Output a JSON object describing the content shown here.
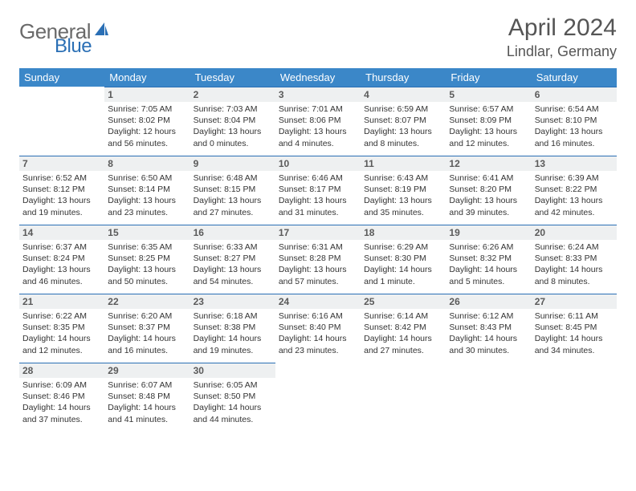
{
  "brand": {
    "part1": "General",
    "part2": "Blue"
  },
  "title": "April 2024",
  "location": "Lindlar, Germany",
  "colors": {
    "header_bg": "#3b87c8",
    "accent": "#2a6fb5",
    "day_bg": "#eef0f1",
    "text": "#3a3a3a"
  },
  "daysOfWeek": [
    "Sunday",
    "Monday",
    "Tuesday",
    "Wednesday",
    "Thursday",
    "Friday",
    "Saturday"
  ],
  "grid": [
    [
      null,
      {
        "n": "1",
        "sr": "Sunrise: 7:05 AM",
        "ss": "Sunset: 8:02 PM",
        "dl1": "Daylight: 12 hours",
        "dl2": "and 56 minutes."
      },
      {
        "n": "2",
        "sr": "Sunrise: 7:03 AM",
        "ss": "Sunset: 8:04 PM",
        "dl1": "Daylight: 13 hours",
        "dl2": "and 0 minutes."
      },
      {
        "n": "3",
        "sr": "Sunrise: 7:01 AM",
        "ss": "Sunset: 8:06 PM",
        "dl1": "Daylight: 13 hours",
        "dl2": "and 4 minutes."
      },
      {
        "n": "4",
        "sr": "Sunrise: 6:59 AM",
        "ss": "Sunset: 8:07 PM",
        "dl1": "Daylight: 13 hours",
        "dl2": "and 8 minutes."
      },
      {
        "n": "5",
        "sr": "Sunrise: 6:57 AM",
        "ss": "Sunset: 8:09 PM",
        "dl1": "Daylight: 13 hours",
        "dl2": "and 12 minutes."
      },
      {
        "n": "6",
        "sr": "Sunrise: 6:54 AM",
        "ss": "Sunset: 8:10 PM",
        "dl1": "Daylight: 13 hours",
        "dl2": "and 16 minutes."
      }
    ],
    [
      {
        "n": "7",
        "sr": "Sunrise: 6:52 AM",
        "ss": "Sunset: 8:12 PM",
        "dl1": "Daylight: 13 hours",
        "dl2": "and 19 minutes."
      },
      {
        "n": "8",
        "sr": "Sunrise: 6:50 AM",
        "ss": "Sunset: 8:14 PM",
        "dl1": "Daylight: 13 hours",
        "dl2": "and 23 minutes."
      },
      {
        "n": "9",
        "sr": "Sunrise: 6:48 AM",
        "ss": "Sunset: 8:15 PM",
        "dl1": "Daylight: 13 hours",
        "dl2": "and 27 minutes."
      },
      {
        "n": "10",
        "sr": "Sunrise: 6:46 AM",
        "ss": "Sunset: 8:17 PM",
        "dl1": "Daylight: 13 hours",
        "dl2": "and 31 minutes."
      },
      {
        "n": "11",
        "sr": "Sunrise: 6:43 AM",
        "ss": "Sunset: 8:19 PM",
        "dl1": "Daylight: 13 hours",
        "dl2": "and 35 minutes."
      },
      {
        "n": "12",
        "sr": "Sunrise: 6:41 AM",
        "ss": "Sunset: 8:20 PM",
        "dl1": "Daylight: 13 hours",
        "dl2": "and 39 minutes."
      },
      {
        "n": "13",
        "sr": "Sunrise: 6:39 AM",
        "ss": "Sunset: 8:22 PM",
        "dl1": "Daylight: 13 hours",
        "dl2": "and 42 minutes."
      }
    ],
    [
      {
        "n": "14",
        "sr": "Sunrise: 6:37 AM",
        "ss": "Sunset: 8:24 PM",
        "dl1": "Daylight: 13 hours",
        "dl2": "and 46 minutes."
      },
      {
        "n": "15",
        "sr": "Sunrise: 6:35 AM",
        "ss": "Sunset: 8:25 PM",
        "dl1": "Daylight: 13 hours",
        "dl2": "and 50 minutes."
      },
      {
        "n": "16",
        "sr": "Sunrise: 6:33 AM",
        "ss": "Sunset: 8:27 PM",
        "dl1": "Daylight: 13 hours",
        "dl2": "and 54 minutes."
      },
      {
        "n": "17",
        "sr": "Sunrise: 6:31 AM",
        "ss": "Sunset: 8:28 PM",
        "dl1": "Daylight: 13 hours",
        "dl2": "and 57 minutes."
      },
      {
        "n": "18",
        "sr": "Sunrise: 6:29 AM",
        "ss": "Sunset: 8:30 PM",
        "dl1": "Daylight: 14 hours",
        "dl2": "and 1 minute."
      },
      {
        "n": "19",
        "sr": "Sunrise: 6:26 AM",
        "ss": "Sunset: 8:32 PM",
        "dl1": "Daylight: 14 hours",
        "dl2": "and 5 minutes."
      },
      {
        "n": "20",
        "sr": "Sunrise: 6:24 AM",
        "ss": "Sunset: 8:33 PM",
        "dl1": "Daylight: 14 hours",
        "dl2": "and 8 minutes."
      }
    ],
    [
      {
        "n": "21",
        "sr": "Sunrise: 6:22 AM",
        "ss": "Sunset: 8:35 PM",
        "dl1": "Daylight: 14 hours",
        "dl2": "and 12 minutes."
      },
      {
        "n": "22",
        "sr": "Sunrise: 6:20 AM",
        "ss": "Sunset: 8:37 PM",
        "dl1": "Daylight: 14 hours",
        "dl2": "and 16 minutes."
      },
      {
        "n": "23",
        "sr": "Sunrise: 6:18 AM",
        "ss": "Sunset: 8:38 PM",
        "dl1": "Daylight: 14 hours",
        "dl2": "and 19 minutes."
      },
      {
        "n": "24",
        "sr": "Sunrise: 6:16 AM",
        "ss": "Sunset: 8:40 PM",
        "dl1": "Daylight: 14 hours",
        "dl2": "and 23 minutes."
      },
      {
        "n": "25",
        "sr": "Sunrise: 6:14 AM",
        "ss": "Sunset: 8:42 PM",
        "dl1": "Daylight: 14 hours",
        "dl2": "and 27 minutes."
      },
      {
        "n": "26",
        "sr": "Sunrise: 6:12 AM",
        "ss": "Sunset: 8:43 PM",
        "dl1": "Daylight: 14 hours",
        "dl2": "and 30 minutes."
      },
      {
        "n": "27",
        "sr": "Sunrise: 6:11 AM",
        "ss": "Sunset: 8:45 PM",
        "dl1": "Daylight: 14 hours",
        "dl2": "and 34 minutes."
      }
    ],
    [
      {
        "n": "28",
        "sr": "Sunrise: 6:09 AM",
        "ss": "Sunset: 8:46 PM",
        "dl1": "Daylight: 14 hours",
        "dl2": "and 37 minutes."
      },
      {
        "n": "29",
        "sr": "Sunrise: 6:07 AM",
        "ss": "Sunset: 8:48 PM",
        "dl1": "Daylight: 14 hours",
        "dl2": "and 41 minutes."
      },
      {
        "n": "30",
        "sr": "Sunrise: 6:05 AM",
        "ss": "Sunset: 8:50 PM",
        "dl1": "Daylight: 14 hours",
        "dl2": "and 44 minutes."
      },
      null,
      null,
      null,
      null
    ]
  ]
}
